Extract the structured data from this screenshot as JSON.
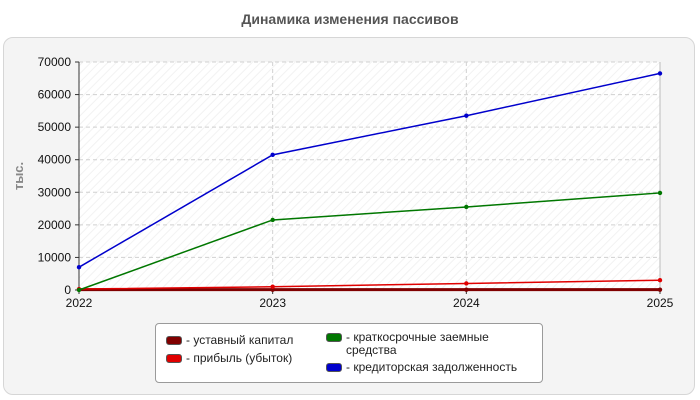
{
  "chart_data": {
    "type": "line",
    "title": "Динамика изменения пассивов",
    "ylabel": "тыс.",
    "xlabel": "",
    "x": [
      "2022",
      "2023",
      "2024",
      "2025"
    ],
    "ylim": [
      0,
      70000
    ],
    "yticks": [
      0,
      10000,
      20000,
      30000,
      40000,
      50000,
      60000,
      70000
    ],
    "grid": true,
    "legend_position": "bottom",
    "series": [
      {
        "name": "- уставный капитал",
        "color": "#800000",
        "values": [
          100,
          100,
          100,
          100
        ]
      },
      {
        "name": "- прибыль (убыток)",
        "color": "#e00000",
        "values": [
          300,
          1000,
          2000,
          3000
        ]
      },
      {
        "name": "- краткосрочные заемные средства",
        "color": "#007700",
        "values": [
          0,
          21500,
          25500,
          29800
        ]
      },
      {
        "name": "- кредиторская задолженность",
        "color": "#0000cc",
        "values": [
          7000,
          41500,
          53500,
          66500
        ]
      }
    ]
  }
}
